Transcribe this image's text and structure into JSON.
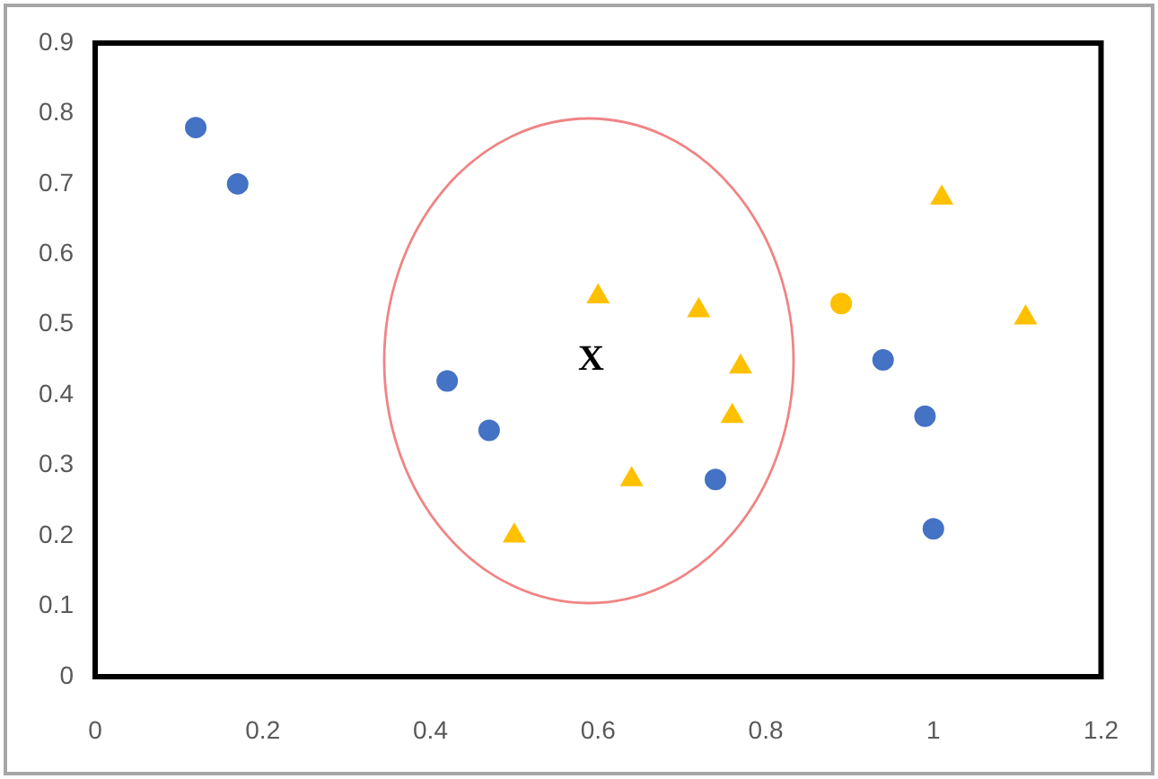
{
  "chart_data": {
    "type": "scatter",
    "xlim": [
      0,
      1.2
    ],
    "ylim": [
      0,
      0.9
    ],
    "xticks": [
      0,
      0.2,
      0.4,
      0.6,
      0.8,
      1,
      1.2
    ],
    "yticks": [
      0,
      0.1,
      0.2,
      0.3,
      0.4,
      0.5,
      0.6,
      0.7,
      0.8,
      0.9
    ],
    "grid": false,
    "legend": false,
    "series": [
      {
        "color": "#4472c4",
        "marker": "circle",
        "x": [
          0.12,
          0.17,
          0.42,
          0.47,
          0.74,
          0.94,
          0.99,
          1.0
        ],
        "values": [
          0.78,
          0.7,
          0.42,
          0.35,
          0.28,
          0.45,
          0.37,
          0.21
        ]
      },
      {
        "color": "#ffc000",
        "marker": "triangle",
        "x": [
          0.6,
          0.72,
          0.77,
          0.76,
          0.64,
          0.5,
          1.01,
          1.11
        ],
        "values": [
          0.54,
          0.52,
          0.44,
          0.37,
          0.28,
          0.2,
          0.68,
          0.51
        ]
      },
      {
        "color": "#ffc000",
        "marker": "circle",
        "x": [
          0.89
        ],
        "values": [
          0.53
        ]
      }
    ],
    "annotations": [
      "X"
    ]
  }
}
